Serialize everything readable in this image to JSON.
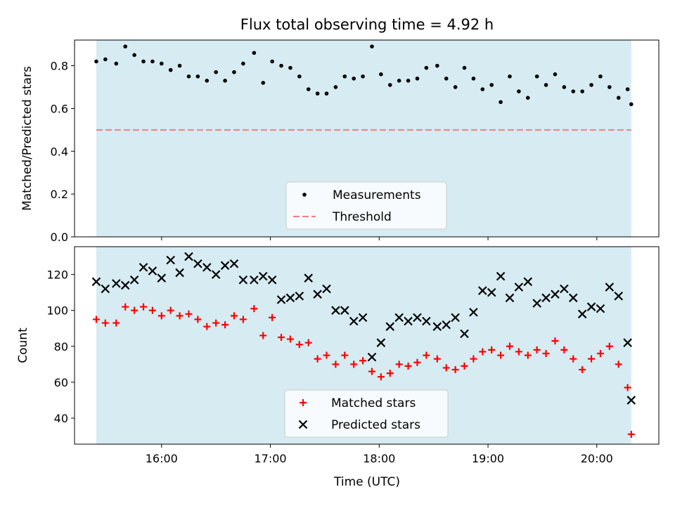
{
  "figure": {
    "title": "Flux total observing time = 4.92 h",
    "xlabel": "Time (UTC)"
  },
  "colors": {
    "span_fill": "#add8e6",
    "measurement": "#000000",
    "threshold": "#f08080",
    "matched": "#ff0000",
    "predicted": "#000000"
  },
  "chart_data": [
    {
      "type": "scatter",
      "ylabel": "Matched/Predicted stars",
      "xlim_hours": [
        15.2,
        20.57
      ],
      "ylim": [
        0,
        0.92
      ],
      "yticks": [
        0.0,
        0.2,
        0.4,
        0.6,
        0.8
      ],
      "ytick_labels": [
        "0.0",
        "0.2",
        "0.4",
        "0.6",
        "0.8"
      ],
      "xticks": [
        16,
        17,
        18,
        19,
        20
      ],
      "observing_span": [
        "15:24",
        "20:19"
      ],
      "legend": "lower-center",
      "series": [
        {
          "name": "Measurements",
          "marker": "dot",
          "x": [
            "15:24",
            "15:29",
            "15:35",
            "15:40",
            "15:45",
            "15:50",
            "15:55",
            "16:00",
            "16:05",
            "16:10",
            "16:15",
            "16:20",
            "16:25",
            "16:30",
            "16:35",
            "16:40",
            "16:45",
            "16:51",
            "16:56",
            "17:01",
            "17:06",
            "17:11",
            "17:16",
            "17:21",
            "17:26",
            "17:31",
            "17:36",
            "17:41",
            "17:46",
            "17:51",
            "17:56",
            "18:01",
            "18:06",
            "18:11",
            "18:16",
            "18:21",
            "18:26",
            "18:32",
            "18:37",
            "18:42",
            "18:47",
            "18:52",
            "18:57",
            "19:02",
            "19:07",
            "19:12",
            "19:17",
            "19:22",
            "19:27",
            "19:32",
            "19:37",
            "19:42",
            "19:47",
            "19:52",
            "19:57",
            "20:02",
            "20:07",
            "20:12",
            "20:17",
            "20:19"
          ],
          "values": [
            0.82,
            0.83,
            0.81,
            0.89,
            0.85,
            0.82,
            0.82,
            0.81,
            0.78,
            0.8,
            0.75,
            0.75,
            0.73,
            0.77,
            0.73,
            0.77,
            0.81,
            0.86,
            0.72,
            0.82,
            0.8,
            0.79,
            0.75,
            0.69,
            0.67,
            0.67,
            0.7,
            0.75,
            0.74,
            0.75,
            0.89,
            0.76,
            0.71,
            0.73,
            0.73,
            0.74,
            0.79,
            0.8,
            0.74,
            0.7,
            0.79,
            0.74,
            0.69,
            0.71,
            0.63,
            0.75,
            0.68,
            0.65,
            0.75,
            0.71,
            0.76,
            0.7,
            0.68,
            0.68,
            0.71,
            0.75,
            0.7,
            0.65,
            0.69,
            0.62
          ]
        },
        {
          "name": "Threshold",
          "marker": "dashed-line",
          "x": [
            "15:24",
            "20:19"
          ],
          "values": [
            0.5,
            0.5
          ]
        }
      ]
    },
    {
      "type": "scatter",
      "ylabel": "Count",
      "xlim_hours": [
        15.2,
        20.57
      ],
      "ylim": [
        25.5,
        135.5
      ],
      "yticks": [
        40,
        60,
        80,
        100,
        120
      ],
      "ytick_labels": [
        "40",
        "60",
        "80",
        "100",
        "120"
      ],
      "xticks": [
        16,
        17,
        18,
        19,
        20
      ],
      "xtick_labels": [
        "16:00",
        "17:00",
        "18:00",
        "19:00",
        "20:00"
      ],
      "observing_span": [
        "15:24",
        "20:19"
      ],
      "legend": "lower-center",
      "series": [
        {
          "name": "Matched stars",
          "marker": "plus",
          "x": [
            "15:24",
            "15:29",
            "15:35",
            "15:40",
            "15:45",
            "15:50",
            "15:55",
            "16:00",
            "16:05",
            "16:10",
            "16:15",
            "16:20",
            "16:25",
            "16:30",
            "16:35",
            "16:40",
            "16:45",
            "16:51",
            "16:56",
            "17:01",
            "17:06",
            "17:11",
            "17:16",
            "17:21",
            "17:26",
            "17:31",
            "17:36",
            "17:41",
            "17:46",
            "17:51",
            "17:56",
            "18:01",
            "18:06",
            "18:11",
            "18:16",
            "18:21",
            "18:26",
            "18:32",
            "18:37",
            "18:42",
            "18:47",
            "18:52",
            "18:57",
            "19:02",
            "19:07",
            "19:12",
            "19:17",
            "19:22",
            "19:27",
            "19:32",
            "19:37",
            "19:42",
            "19:47",
            "19:52",
            "19:57",
            "20:02",
            "20:07",
            "20:12",
            "20:17",
            "20:19"
          ],
          "values": [
            95,
            93,
            93,
            102,
            100,
            102,
            100,
            97,
            100,
            97,
            98,
            95,
            91,
            93,
            92,
            97,
            95,
            101,
            86,
            96,
            85,
            84,
            81,
            82,
            73,
            75,
            70,
            75,
            70,
            72,
            66,
            63,
            65,
            70,
            69,
            71,
            75,
            73,
            68,
            67,
            69,
            73,
            77,
            78,
            75,
            80,
            77,
            75,
            78,
            76,
            83,
            78,
            73,
            67,
            73,
            76,
            80,
            70,
            57,
            31
          ]
        },
        {
          "name": "Predicted stars",
          "marker": "x",
          "x": [
            "15:24",
            "15:29",
            "15:35",
            "15:40",
            "15:45",
            "15:50",
            "15:55",
            "16:00",
            "16:05",
            "16:10",
            "16:15",
            "16:20",
            "16:25",
            "16:30",
            "16:35",
            "16:40",
            "16:45",
            "16:51",
            "16:56",
            "17:01",
            "17:06",
            "17:11",
            "17:16",
            "17:21",
            "17:26",
            "17:31",
            "17:36",
            "17:41",
            "17:46",
            "17:51",
            "17:56",
            "18:01",
            "18:06",
            "18:11",
            "18:16",
            "18:21",
            "18:26",
            "18:32",
            "18:37",
            "18:42",
            "18:47",
            "18:52",
            "18:57",
            "19:02",
            "19:07",
            "19:12",
            "19:17",
            "19:22",
            "19:27",
            "19:32",
            "19:37",
            "19:42",
            "19:47",
            "19:52",
            "19:57",
            "20:02",
            "20:07",
            "20:12",
            "20:17",
            "20:19"
          ],
          "values": [
            116,
            112,
            115,
            114,
            117,
            124,
            122,
            118,
            128,
            121,
            130,
            126,
            124,
            120,
            125,
            126,
            117,
            117,
            119,
            117,
            106,
            107,
            108,
            118,
            109,
            112,
            100,
            100,
            94,
            96,
            74,
            82,
            91,
            96,
            94,
            96,
            94,
            91,
            92,
            96,
            87,
            99,
            111,
            110,
            119,
            107,
            113,
            116,
            104,
            107,
            109,
            112,
            107,
            98,
            102,
            101,
            113,
            108,
            82,
            50
          ]
        }
      ]
    }
  ]
}
